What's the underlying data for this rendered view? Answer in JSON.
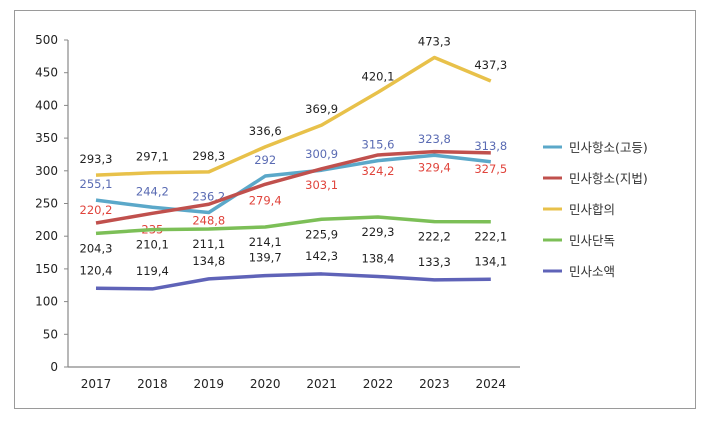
{
  "chart_data": {
    "type": "line",
    "title": "",
    "xlabel": "",
    "ylabel": "",
    "x": [
      "2017",
      "2018",
      "2019",
      "2020",
      "2021",
      "2022",
      "2023",
      "2024"
    ],
    "ylim": [
      0,
      500
    ],
    "yticks": [
      0,
      50,
      100,
      150,
      200,
      250,
      300,
      350,
      400,
      450,
      500
    ],
    "grid": false,
    "legend_position": "right",
    "series": [
      {
        "name": "민사항소(고등)",
        "color": "#5ba8c9",
        "label_color": "#5a6bb3",
        "values": [
          255.1,
          244.2,
          236.2,
          292,
          300.9,
          315.6,
          323.8,
          313.8
        ]
      },
      {
        "name": "민사항소(지법)",
        "color": "#c0504d",
        "label_color": "#e0443c",
        "values": [
          220.2,
          235,
          248.8,
          279.4,
          303.1,
          324.2,
          329.4,
          327.5
        ]
      },
      {
        "name": "민사합의",
        "color": "#e8c14a",
        "label_color": "#222222",
        "values": [
          293.3,
          297.1,
          298.3,
          336.6,
          369.9,
          420.1,
          473.3,
          437.3
        ]
      },
      {
        "name": "민사단독",
        "color": "#7cbf57",
        "label_color": "#222222",
        "values": [
          204.3,
          210.1,
          211.1,
          214.1,
          225.9,
          229.3,
          222.2,
          222.1
        ]
      },
      {
        "name": "민사소액",
        "color": "#5f63b8",
        "label_color": "#222222",
        "values": [
          120.4,
          119.4,
          134.8,
          139.7,
          142.3,
          138.4,
          133.3,
          134.1
        ]
      }
    ]
  }
}
